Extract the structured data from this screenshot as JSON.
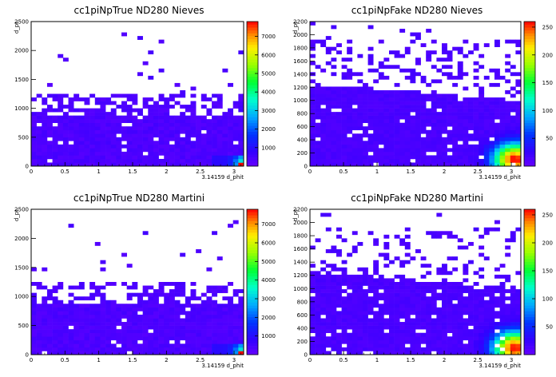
{
  "chart_data": [
    {
      "type": "heatmap",
      "title": "cc1piNpTrue ND280 Nieves",
      "xlabel": "3.14159 d_phit",
      "ylabel": "d_pt",
      "xlim": [
        0,
        3.14159
      ],
      "ylim": [
        0,
        2500
      ],
      "zlim": [
        0,
        7800
      ],
      "xticks": [
        "0",
        "0.5",
        "1",
        "1.5",
        "2",
        "2.5",
        "3"
      ],
      "yticks": [
        "0",
        "500",
        "1000",
        "1500",
        "2000",
        "2500"
      ],
      "zticks": [
        "1000",
        "2000",
        "3000",
        "4000",
        "5000",
        "6000",
        "7000"
      ],
      "peak": {
        "x": 3.1,
        "y": 25,
        "z": 7800
      },
      "core_region": {
        "x": [
          0,
          3.14159
        ],
        "y": [
          0,
          900
        ],
        "z_typical": 150
      }
    },
    {
      "type": "heatmap",
      "title": "cc1piNpFake ND280 Nieves",
      "xlabel": "3.14159 d_phit",
      "ylabel": "d_pt",
      "xlim": [
        0,
        3.14159
      ],
      "ylim": [
        0,
        2200
      ],
      "zlim": [
        0,
        260
      ],
      "xticks": [
        "0",
        "0.5",
        "1",
        "1.5",
        "2",
        "2.5",
        "3"
      ],
      "yticks": [
        "0",
        "200",
        "400",
        "600",
        "800",
        "1000",
        "1200",
        "1400",
        "1600",
        "1800",
        "2000",
        "2200"
      ],
      "zticks": [
        "50",
        "100",
        "150",
        "200",
        "250"
      ],
      "peak": {
        "x": 3.05,
        "y": 100,
        "z": 250
      },
      "core_region": {
        "x": [
          0,
          3.14159
        ],
        "y": [
          0,
          1000
        ],
        "z_typical": 10
      }
    },
    {
      "type": "heatmap",
      "title": "cc1piNpTrue ND280 Martini",
      "xlabel": "3.14159 d_phit",
      "ylabel": "d_pt",
      "xlim": [
        0,
        3.14159
      ],
      "ylim": [
        0,
        2500
      ],
      "zlim": [
        0,
        7800
      ],
      "xticks": [
        "0",
        "0.5",
        "1",
        "1.5",
        "2",
        "2.5",
        "3"
      ],
      "yticks": [
        "0",
        "500",
        "1000",
        "1500",
        "2000",
        "2500"
      ],
      "zticks": [
        "1000",
        "2000",
        "3000",
        "4000",
        "5000",
        "6000",
        "7000"
      ],
      "peak": {
        "x": 3.1,
        "y": 25,
        "z": 7800
      },
      "core_region": {
        "x": [
          0,
          3.14159
        ],
        "y": [
          0,
          900
        ],
        "z_typical": 150
      }
    },
    {
      "type": "heatmap",
      "title": "cc1piNpFake ND280 Martini",
      "xlabel": "3.14159 d_phit",
      "ylabel": "d_pt",
      "xlim": [
        0,
        3.14159
      ],
      "ylim": [
        0,
        2200
      ],
      "zlim": [
        0,
        260
      ],
      "xticks": [
        "0",
        "0.5",
        "1",
        "1.5",
        "2",
        "2.5",
        "3"
      ],
      "yticks": [
        "0",
        "200",
        "400",
        "600",
        "800",
        "1000",
        "1200",
        "1400",
        "1600",
        "1800",
        "2000",
        "2200"
      ],
      "zticks": [
        "50",
        "100",
        "150",
        "200",
        "250"
      ],
      "peak": {
        "x": 3.05,
        "y": 100,
        "z": 250
      },
      "core_region": {
        "x": [
          0,
          3.14159
        ],
        "y": [
          0,
          1000
        ],
        "z_typical": 10
      }
    }
  ]
}
